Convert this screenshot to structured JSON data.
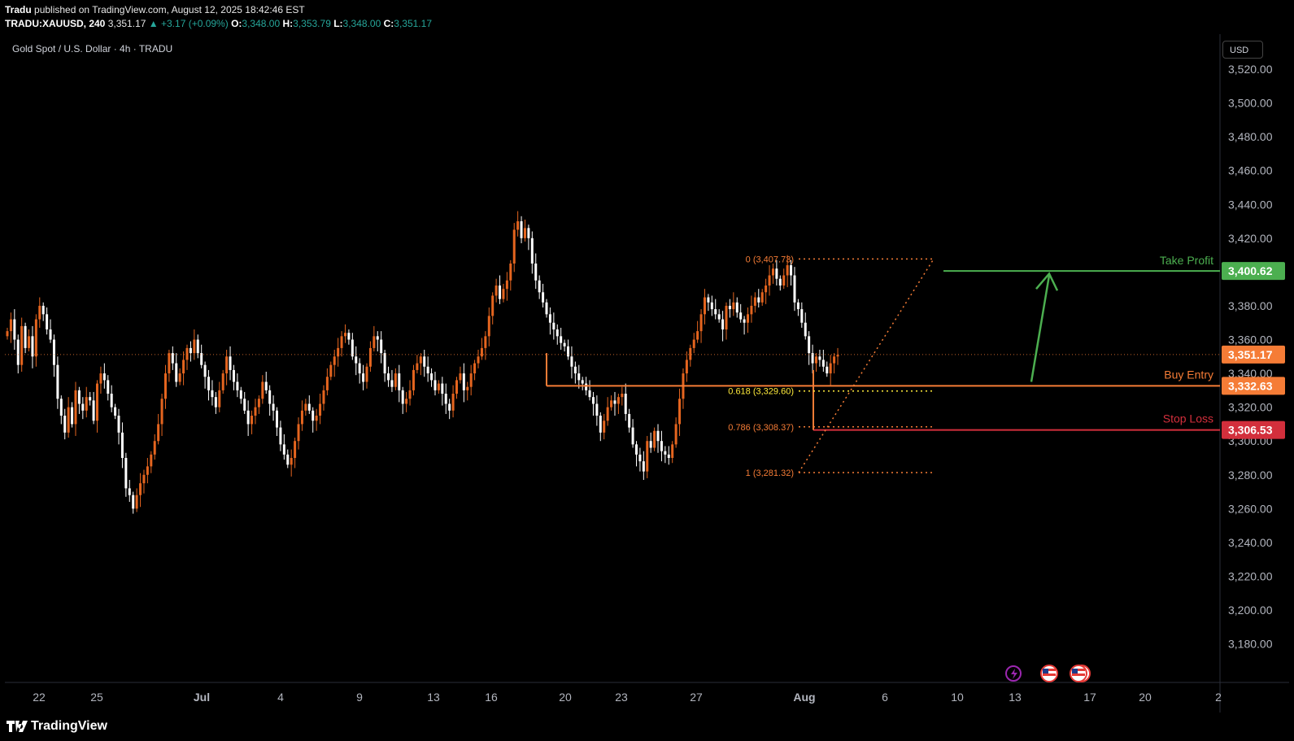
{
  "header": {
    "publisher": "Tradu",
    "published_text": "published on TradingView.com, August 12, 2025 18:42:46 EST",
    "symbol": "TRADU:XAUUSD, 240",
    "last": "3,351.17",
    "change": "+3.17 (+0.09%)",
    "open_label": "O:",
    "open": "3,348.00",
    "high_label": "H:",
    "high": "3,353.79",
    "low_label": "L:",
    "low": "3,348.00",
    "close_label": "C:",
    "close": "3,351.17"
  },
  "legend": {
    "name": "Gold Spot / U.S. Dollar · 4h · TRADU"
  },
  "currency_button": "USD",
  "footer": {
    "brand": "TradingView"
  },
  "colors": {
    "up": "#e5651f",
    "down": "#ffffff",
    "grid_bg": "#000000",
    "take_profit": "#4caf50",
    "buy_entry": "#f57c36",
    "stop_loss": "#d32f3c",
    "last_price": "#f57c36",
    "fib": "#f57c36",
    "fib_618": "#ffeb3b"
  },
  "chart_data": {
    "type": "candlestick",
    "title": "Gold Spot / U.S. Dollar · 4h · TRADU",
    "ylim": [
      3160,
      3530
    ],
    "y_ticks": [
      "3,520.00",
      "3,500.00",
      "3,480.00",
      "3,460.00",
      "3,440.00",
      "3,420.00",
      "3,400.00",
      "3,380.00",
      "3,360.00",
      "3,340.00",
      "3,320.00",
      "3,300.00",
      "3,280.00",
      "3,260.00",
      "3,240.00",
      "3,220.00",
      "3,200.00",
      "3,180.00"
    ],
    "y_tick_values": [
      3520,
      3500,
      3480,
      3460,
      3440,
      3420,
      3400,
      3380,
      3360,
      3340,
      3320,
      3300,
      3280,
      3260,
      3240,
      3220,
      3200,
      3180
    ],
    "x_ticks": [
      {
        "label": "22",
        "bold": false
      },
      {
        "label": "25",
        "bold": false
      },
      {
        "label": "Jul",
        "bold": true
      },
      {
        "label": "4",
        "bold": false
      },
      {
        "label": "9",
        "bold": false
      },
      {
        "label": "13",
        "bold": false
      },
      {
        "label": "16",
        "bold": false
      },
      {
        "label": "20",
        "bold": false
      },
      {
        "label": "23",
        "bold": false
      },
      {
        "label": "27",
        "bold": false
      },
      {
        "label": "Aug",
        "bold": true
      },
      {
        "label": "6",
        "bold": false
      },
      {
        "label": "10",
        "bold": false
      },
      {
        "label": "13",
        "bold": false
      },
      {
        "label": "17",
        "bold": false
      },
      {
        "label": "20",
        "bold": false
      },
      {
        "label": "2",
        "bold": false
      }
    ],
    "price_levels": [
      {
        "name": "Take Profit",
        "value": 3400.62,
        "label": "3,400.62",
        "color": "#4caf50"
      },
      {
        "name": "Last",
        "value": 3351.17,
        "label": "3,351.17",
        "color": "#f57c36"
      },
      {
        "name": "Buy Entry",
        "value": 3332.63,
        "label": "3,332.63",
        "color": "#f57c36"
      },
      {
        "name": "Stop Loss",
        "value": 3306.53,
        "label": "3,306.53",
        "color": "#d32f3c"
      }
    ],
    "fib_levels": [
      {
        "label": "0 (3,407.73)",
        "value": 3407.73
      },
      {
        "label": "0.618 (3,329.60)",
        "value": 3329.6
      },
      {
        "label": "0.786 (3,308.37)",
        "value": 3308.37
      },
      {
        "label": "1 (3,281.32)",
        "value": 3281.32
      }
    ],
    "drawings": {
      "take_profit_label": "Take Profit",
      "buy_entry_label": "Buy Entry",
      "stop_loss_label": "Stop Loss"
    },
    "close_path": [
      3365,
      3372,
      3360,
      3345,
      3368,
      3355,
      3362,
      3350,
      3372,
      3380,
      3375,
      3366,
      3360,
      3345,
      3325,
      3315,
      3305,
      3320,
      3310,
      3330,
      3322,
      3318,
      3326,
      3324,
      3312,
      3334,
      3340,
      3336,
      3328,
      3320,
      3315,
      3305,
      3290,
      3272,
      3268,
      3260,
      3268,
      3275,
      3280,
      3285,
      3292,
      3300,
      3310,
      3325,
      3340,
      3352,
      3346,
      3335,
      3340,
      3348,
      3355,
      3352,
      3360,
      3352,
      3345,
      3338,
      3330,
      3326,
      3320,
      3330,
      3340,
      3350,
      3342,
      3335,
      3330,
      3325,
      3318,
      3310,
      3315,
      3320,
      3325,
      3335,
      3330,
      3322,
      3318,
      3308,
      3298,
      3292,
      3286,
      3290,
      3300,
      3310,
      3318,
      3322,
      3318,
      3312,
      3315,
      3322,
      3330,
      3338,
      3345,
      3350,
      3355,
      3362,
      3364,
      3360,
      3350,
      3346,
      3340,
      3335,
      3344,
      3355,
      3362,
      3360,
      3352,
      3340,
      3336,
      3332,
      3340,
      3330,
      3322,
      3325,
      3330,
      3342,
      3346,
      3350,
      3344,
      3340,
      3336,
      3330,
      3334,
      3328,
      3322,
      3318,
      3328,
      3336,
      3340,
      3330,
      3332,
      3340,
      3346,
      3350,
      3355,
      3362,
      3374,
      3386,
      3392,
      3384,
      3390,
      3395,
      3405,
      3425,
      3430,
      3420,
      3426,
      3420,
      3405,
      3395,
      3388,
      3382,
      3375,
      3370,
      3366,
      3362,
      3358,
      3356,
      3350,
      3344,
      3340,
      3336,
      3334,
      3330,
      3326,
      3322,
      3315,
      3305,
      3312,
      3320,
      3324,
      3322,
      3326,
      3328,
      3316,
      3308,
      3298,
      3292,
      3288,
      3282,
      3300,
      3296,
      3306,
      3300,
      3294,
      3292,
      3290,
      3298,
      3310,
      3325,
      3340,
      3348,
      3355,
      3360,
      3365,
      3375,
      3385,
      3382,
      3378,
      3375,
      3372,
      3366,
      3380,
      3378,
      3382,
      3376,
      3372,
      3370,
      3375,
      3380,
      3385,
      3382,
      3388,
      3392,
      3398,
      3402,
      3396,
      3392,
      3398,
      3404,
      3398,
      3382,
      3378,
      3370,
      3362,
      3352,
      3346,
      3350,
      3348,
      3344,
      3340,
      3346,
      3350,
      3351
    ]
  }
}
